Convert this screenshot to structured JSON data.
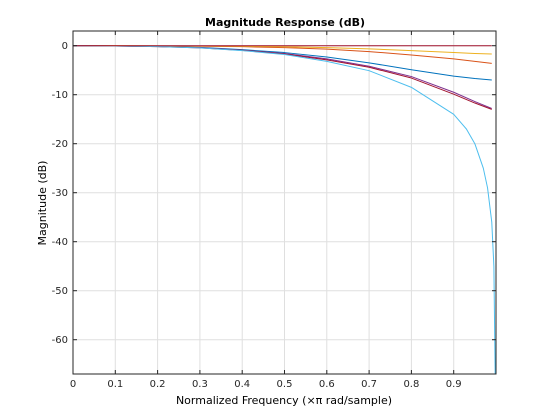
{
  "chart_data": {
    "type": "line",
    "title": "Magnitude Response (dB)",
    "xlabel": "Normalized Frequency (×π rad/sample)",
    "ylabel": "Magnitude (dB)",
    "xlim": [
      0,
      1
    ],
    "ylim": [
      -67,
      3
    ],
    "grid": true,
    "x_ticks": [
      0,
      0.1,
      0.2,
      0.3,
      0.4,
      0.5,
      0.6,
      0.7,
      0.8,
      0.9
    ],
    "x_tick_labels": [
      "0",
      "0.1",
      "0.2",
      "0.3",
      "0.4",
      "0.5",
      "0.6",
      "0.7",
      "0.8",
      "0.9"
    ],
    "y_ticks": [
      0,
      -10,
      -20,
      -30,
      -40,
      -50,
      -60
    ],
    "y_tick_labels": [
      "0",
      "-10",
      "-20",
      "-30",
      "-40",
      "-50",
      "-60"
    ],
    "series": [
      {
        "color": "#0072bd",
        "x": [
          0,
          0.1,
          0.2,
          0.3,
          0.4,
          0.5,
          0.6,
          0.7,
          0.8,
          0.9,
          0.95,
          0.99
        ],
        "y": [
          0,
          -0.05,
          -0.15,
          -0.35,
          -0.8,
          -1.4,
          -2.3,
          -3.5,
          -4.9,
          -6.2,
          -6.7,
          -7.0
        ]
      },
      {
        "color": "#d95319",
        "x": [
          0,
          0.1,
          0.2,
          0.3,
          0.4,
          0.5,
          0.6,
          0.7,
          0.8,
          0.9,
          0.95,
          0.99
        ],
        "y": [
          0,
          -0.02,
          -0.05,
          -0.1,
          -0.2,
          -0.4,
          -0.7,
          -1.2,
          -1.9,
          -2.7,
          -3.2,
          -3.6
        ]
      },
      {
        "color": "#edb120",
        "x": [
          0,
          0.1,
          0.2,
          0.3,
          0.4,
          0.5,
          0.6,
          0.7,
          0.8,
          0.9,
          0.95,
          0.99
        ],
        "y": [
          0,
          -0.01,
          -0.03,
          -0.06,
          -0.12,
          -0.22,
          -0.4,
          -0.65,
          -1.0,
          -1.4,
          -1.6,
          -1.7
        ]
      },
      {
        "color": "#7e2f8e",
        "x": [
          0,
          0.1,
          0.2,
          0.3,
          0.4,
          0.5,
          0.6,
          0.7,
          0.8,
          0.9,
          0.95,
          0.99
        ],
        "y": [
          0,
          -0.05,
          -0.15,
          -0.4,
          -0.9,
          -1.6,
          -2.7,
          -4.2,
          -6.3,
          -9.5,
          -11.4,
          -12.8
        ]
      },
      {
        "color": "#a2142f",
        "x": [
          0,
          0.1,
          0.2,
          0.3,
          0.4,
          0.5,
          0.6,
          0.7,
          0.8,
          0.9,
          0.95,
          0.99
        ],
        "y": [
          0,
          -0.05,
          -0.2,
          -0.45,
          -0.95,
          -1.7,
          -2.9,
          -4.4,
          -6.6,
          -9.9,
          -11.7,
          -13.0
        ]
      },
      {
        "color": "#4dbeee",
        "x": [
          0,
          0.1,
          0.2,
          0.3,
          0.4,
          0.5,
          0.6,
          0.7,
          0.8,
          0.9,
          0.93,
          0.95,
          0.97,
          0.98,
          0.99,
          0.995,
          0.998
        ],
        "y": [
          0,
          -0.05,
          -0.2,
          -0.45,
          -1.0,
          -1.8,
          -3.2,
          -5.1,
          -8.5,
          -14.0,
          -17.0,
          -20.0,
          -25.0,
          -29.0,
          -36.0,
          -45.0,
          -67.0
        ]
      },
      {
        "color": "#a2142f",
        "x": [
          0,
          0.3,
          0.6,
          0.9,
          0.99
        ],
        "y": [
          0,
          0,
          0,
          0,
          0
        ]
      }
    ]
  }
}
